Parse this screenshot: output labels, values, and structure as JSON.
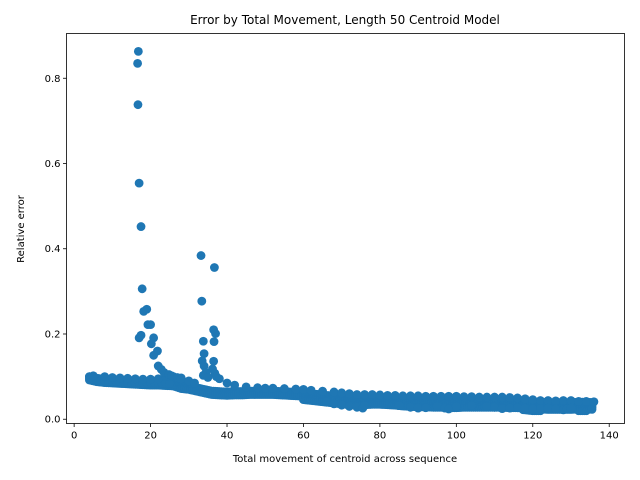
{
  "chart_data": {
    "type": "scatter",
    "title": "Error by Total Movement, Length 50 Centroid Model",
    "xlabel": "Total movement of centroid across sequence",
    "ylabel": "Relative error",
    "xlim": [
      -2,
      144
    ],
    "ylim": [
      -0.01,
      0.905
    ],
    "xticks": [
      0,
      20,
      40,
      60,
      80,
      100,
      120,
      140
    ],
    "yticks": [
      0.0,
      0.2,
      0.4,
      0.6,
      0.8
    ],
    "ytick_labels": [
      "0.0",
      "0.2",
      "0.4",
      "0.6",
      "0.8"
    ],
    "grid": false,
    "marker_color": "#1f77b4",
    "band": [
      [
        4,
        0.1
      ],
      [
        6,
        0.096
      ],
      [
        8,
        0.094
      ],
      [
        10,
        0.093
      ],
      [
        12,
        0.092
      ],
      [
        14,
        0.091
      ],
      [
        16,
        0.09
      ],
      [
        18,
        0.089
      ],
      [
        20,
        0.088
      ],
      [
        22,
        0.088
      ],
      [
        24,
        0.087
      ],
      [
        26,
        0.086
      ],
      [
        28,
        0.08
      ],
      [
        30,
        0.078
      ],
      [
        32,
        0.074
      ],
      [
        34,
        0.07
      ],
      [
        36,
        0.066
      ],
      [
        38,
        0.065
      ],
      [
        40,
        0.064
      ],
      [
        42,
        0.065
      ],
      [
        44,
        0.065
      ],
      [
        46,
        0.066
      ],
      [
        48,
        0.066
      ],
      [
        50,
        0.066
      ],
      [
        52,
        0.066
      ],
      [
        54,
        0.065
      ],
      [
        56,
        0.064
      ],
      [
        58,
        0.063
      ],
      [
        60,
        0.062
      ],
      [
        62,
        0.06
      ],
      [
        64,
        0.058
      ],
      [
        66,
        0.056
      ],
      [
        68,
        0.054
      ],
      [
        70,
        0.052
      ],
      [
        72,
        0.05
      ],
      [
        74,
        0.049
      ],
      [
        76,
        0.05
      ],
      [
        78,
        0.051
      ],
      [
        80,
        0.051
      ],
      [
        82,
        0.05
      ],
      [
        84,
        0.049
      ],
      [
        86,
        0.047
      ],
      [
        88,
        0.046
      ],
      [
        90,
        0.045
      ],
      [
        92,
        0.045
      ],
      [
        94,
        0.044
      ],
      [
        96,
        0.044
      ],
      [
        98,
        0.043
      ],
      [
        100,
        0.043
      ],
      [
        102,
        0.044
      ],
      [
        104,
        0.044
      ],
      [
        106,
        0.044
      ],
      [
        108,
        0.044
      ],
      [
        110,
        0.044
      ],
      [
        112,
        0.044
      ],
      [
        114,
        0.043
      ],
      [
        116,
        0.043
      ],
      [
        118,
        0.042
      ],
      [
        120,
        0.04
      ],
      [
        122,
        0.04
      ],
      [
        124,
        0.039
      ],
      [
        126,
        0.039
      ],
      [
        128,
        0.039
      ],
      [
        130,
        0.039
      ],
      [
        132,
        0.04
      ],
      [
        134,
        0.04
      ],
      [
        136,
        0.039
      ]
    ],
    "points": [
      [
        4,
        0.1
      ],
      [
        4.5,
        0.097
      ],
      [
        5,
        0.094
      ],
      [
        6,
        0.091
      ],
      [
        7,
        0.09
      ],
      [
        8,
        0.09
      ],
      [
        9,
        0.088
      ],
      [
        10,
        0.088
      ],
      [
        11,
        0.088
      ],
      [
        12,
        0.087
      ],
      [
        13,
        0.087
      ],
      [
        14,
        0.086
      ],
      [
        15,
        0.086
      ],
      [
        16,
        0.085
      ],
      [
        17,
        0.085
      ],
      [
        18,
        0.085
      ],
      [
        19,
        0.085
      ],
      [
        20,
        0.086
      ],
      [
        21,
        0.086
      ],
      [
        22,
        0.086
      ],
      [
        23,
        0.085
      ],
      [
        24,
        0.085
      ],
      [
        25,
        0.084
      ],
      [
        5,
        0.102
      ],
      [
        8,
        0.1
      ],
      [
        10,
        0.098
      ],
      [
        12,
        0.097
      ],
      [
        14,
        0.096
      ],
      [
        16,
        0.095
      ],
      [
        18,
        0.094
      ],
      [
        20,
        0.094
      ],
      [
        22,
        0.095
      ],
      [
        24,
        0.1
      ],
      [
        26,
        0.1
      ],
      [
        28,
        0.097
      ],
      [
        16.8,
        0.863
      ],
      [
        16.6,
        0.835
      ],
      [
        16.7,
        0.738
      ],
      [
        17.0,
        0.554
      ],
      [
        17.5,
        0.452
      ],
      [
        17.8,
        0.306
      ],
      [
        18.2,
        0.253
      ],
      [
        19.0,
        0.258
      ],
      [
        19.3,
        0.222
      ],
      [
        20.0,
        0.222
      ],
      [
        20.8,
        0.191
      ],
      [
        17.0,
        0.191
      ],
      [
        17.5,
        0.197
      ],
      [
        20.2,
        0.177
      ],
      [
        21.8,
        0.16
      ],
      [
        20.8,
        0.15
      ],
      [
        22.0,
        0.125
      ],
      [
        22.8,
        0.117
      ],
      [
        23.5,
        0.11
      ],
      [
        24.8,
        0.105
      ],
      [
        25.5,
        0.102
      ],
      [
        27.0,
        0.098
      ],
      [
        28.0,
        0.095
      ],
      [
        30.0,
        0.09
      ],
      [
        31.5,
        0.085
      ],
      [
        33.2,
        0.384
      ],
      [
        33.4,
        0.277
      ],
      [
        36.7,
        0.356
      ],
      [
        36.5,
        0.21
      ],
      [
        37.0,
        0.201
      ],
      [
        36.6,
        0.182
      ],
      [
        33.8,
        0.183
      ],
      [
        34.0,
        0.154
      ],
      [
        33.5,
        0.137
      ],
      [
        36.5,
        0.136
      ],
      [
        34.0,
        0.125
      ],
      [
        36.2,
        0.118
      ],
      [
        34.5,
        0.11
      ],
      [
        36.8,
        0.108
      ],
      [
        33.8,
        0.103
      ],
      [
        37.2,
        0.1
      ],
      [
        35.0,
        0.098
      ],
      [
        38.0,
        0.095
      ],
      [
        40.0,
        0.085
      ],
      [
        42.0,
        0.08
      ],
      [
        45.0,
        0.076
      ],
      [
        48.0,
        0.074
      ],
      [
        50.0,
        0.073
      ],
      [
        52.0,
        0.073
      ],
      [
        55.0,
        0.072
      ],
      [
        58.0,
        0.071
      ],
      [
        60.0,
        0.07
      ],
      [
        62.0,
        0.068
      ],
      [
        65.0,
        0.066
      ],
      [
        68.0,
        0.064
      ],
      [
        70.0,
        0.062
      ],
      [
        72.0,
        0.06
      ],
      [
        74.0,
        0.058
      ],
      [
        76.0,
        0.058
      ],
      [
        78.0,
        0.058
      ],
      [
        80.0,
        0.057
      ],
      [
        82.0,
        0.056
      ],
      [
        84.0,
        0.056
      ],
      [
        86.0,
        0.055
      ],
      [
        88.0,
        0.055
      ],
      [
        90.0,
        0.055
      ],
      [
        92.0,
        0.054
      ],
      [
        94.0,
        0.054
      ],
      [
        96.0,
        0.054
      ],
      [
        98.0,
        0.054
      ],
      [
        100.0,
        0.054
      ],
      [
        102.0,
        0.053
      ],
      [
        104.0,
        0.053
      ],
      [
        106.0,
        0.052
      ],
      [
        108.0,
        0.052
      ],
      [
        110.0,
        0.052
      ],
      [
        112.0,
        0.052
      ],
      [
        114.0,
        0.051
      ],
      [
        116.0,
        0.05
      ],
      [
        118.0,
        0.048
      ],
      [
        120.0,
        0.046
      ],
      [
        122.0,
        0.044
      ],
      [
        124.0,
        0.044
      ],
      [
        126.0,
        0.043
      ],
      [
        128.0,
        0.044
      ],
      [
        130.0,
        0.044
      ],
      [
        132.0,
        0.042
      ],
      [
        134.0,
        0.042
      ],
      [
        136.0,
        0.041
      ],
      [
        66.0,
        0.04
      ],
      [
        68.0,
        0.036
      ],
      [
        70.0,
        0.033
      ],
      [
        72.0,
        0.03
      ],
      [
        74.0,
        0.028
      ],
      [
        75.5,
        0.026
      ],
      [
        76.0,
        0.032
      ],
      [
        85.0,
        0.032
      ],
      [
        88.0,
        0.028
      ],
      [
        90.0,
        0.026
      ],
      [
        92.0,
        0.027
      ],
      [
        95.0,
        0.03
      ],
      [
        97.0,
        0.026
      ],
      [
        98.0,
        0.024
      ],
      [
        100.0,
        0.03
      ],
      [
        104.0,
        0.032
      ],
      [
        108.0,
        0.03
      ],
      [
        110.0,
        0.028
      ],
      [
        112.0,
        0.025
      ],
      [
        114.0,
        0.026
      ],
      [
        116.0,
        0.027
      ],
      [
        118.0,
        0.026
      ],
      [
        120.0,
        0.024
      ],
      [
        122.0,
        0.025
      ],
      [
        124.0,
        0.026
      ],
      [
        126.0,
        0.024
      ],
      [
        128.0,
        0.022
      ],
      [
        129.0,
        0.024
      ],
      [
        130.0,
        0.026
      ]
    ]
  }
}
